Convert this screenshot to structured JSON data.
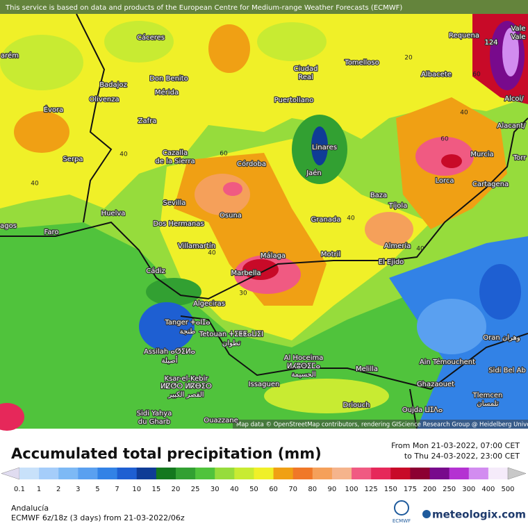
{
  "header": {
    "notice": "This service is based on data and products of the European Centre for Medium-range Weather Forecasts (ECMWF)"
  },
  "map": {
    "places": [
      "Cáceres",
      "Badajoz",
      "Olivenza",
      "Don Benito",
      "Mérida",
      "Évora",
      "Zafra",
      "Serpa",
      "Cazalla",
      "de la Sierra",
      "Córdoba",
      "Huelva",
      "Sevilla",
      "Dos Hermanas",
      "Osuna",
      "Faro",
      "Villamartín",
      "Cádiz",
      "Marbella",
      "Málaga",
      "Algeciras",
      "Tanger ⵜⴰⵏⵊⴰ",
      "طنجة",
      "Tetouan ⵜⵉⵟⵟⴰⵡⵉⵏ",
      "تطوان",
      "Assilah ⴰⵚⵉⵍⴰ",
      "أصيلة",
      "Ksar-el-Kebir",
      "ⵍⵇⵚⵔ ⵍⴽⴱⵉⵔ",
      "القصر الكبير",
      "Sidi Yahya",
      "du Gharb",
      "Ouazzane",
      "Issaguen",
      "Al Hoceima",
      "ⵍⵃⵓⵙⵉⵎⴰ",
      "الحسيمة",
      "Melilla",
      "Driouch",
      "Motril",
      "El Ejido",
      "Almería",
      "Tíjola",
      "Baza",
      "Granada",
      "Jaén",
      "Linares",
      "Puertollano",
      "Ciudad",
      "Real",
      "Tomelloso",
      "Albacete",
      "Murcia",
      "Lorca",
      "Cartagena",
      "Alacant/",
      "Torr",
      "Alcoi/",
      "Requena",
      "Vale",
      "Vale",
      "Oran وهران",
      "Ain Témouchent",
      "Sidi Bel Ab",
      "Ghazaouet",
      "Tlemcen",
      "تلمسان",
      "Oujda ⵡⵊⴷⴰ",
      "arém",
      "agos"
    ],
    "contour_labels": [
      "40",
      "40",
      "60",
      "40",
      "30",
      "40",
      "40",
      "60",
      "40",
      "60",
      "20",
      "124"
    ],
    "attribution": "Map data © OpenStreetMap contributors, rendering GIScience Research Group @ Heidelberg University"
  },
  "legend": {
    "title": "Accumulated total precipitation (mm)",
    "from": "From Mon 21-03-2022, 07:00 CET",
    "to": "to Thu 24-03-2022, 23:00 CET",
    "labels": [
      "0.1",
      "1",
      "2",
      "3",
      "5",
      "7",
      "10",
      "15",
      "20",
      "25",
      "30",
      "40",
      "50",
      "60",
      "70",
      "80",
      "90",
      "100",
      "125",
      "150",
      "175",
      "200",
      "250",
      "300",
      "400",
      "500"
    ],
    "colors": [
      "#e0dcf0",
      "#c8e1fa",
      "#a5cdfa",
      "#7db9f5",
      "#5aa0f0",
      "#3282e6",
      "#1e5fd2",
      "#0f3c96",
      "#14781e",
      "#32a032",
      "#50c33c",
      "#96dc3c",
      "#c8eb32",
      "#f0f028",
      "#f0a014",
      "#f07828",
      "#f5a05a",
      "#f5b48c",
      "#f05a82",
      "#e6285a",
      "#c80a28",
      "#8c0032",
      "#780a8c",
      "#b432d2",
      "#d28cf0",
      "#f5ebfa",
      "#c8c8c8"
    ]
  },
  "footer": {
    "region": "Andalucía",
    "model": "ECMWF 6z/18z (3 days) from 21-03-2022/06z",
    "ecmwf_logo": "ECMWF",
    "brand": "meteologix.com"
  }
}
